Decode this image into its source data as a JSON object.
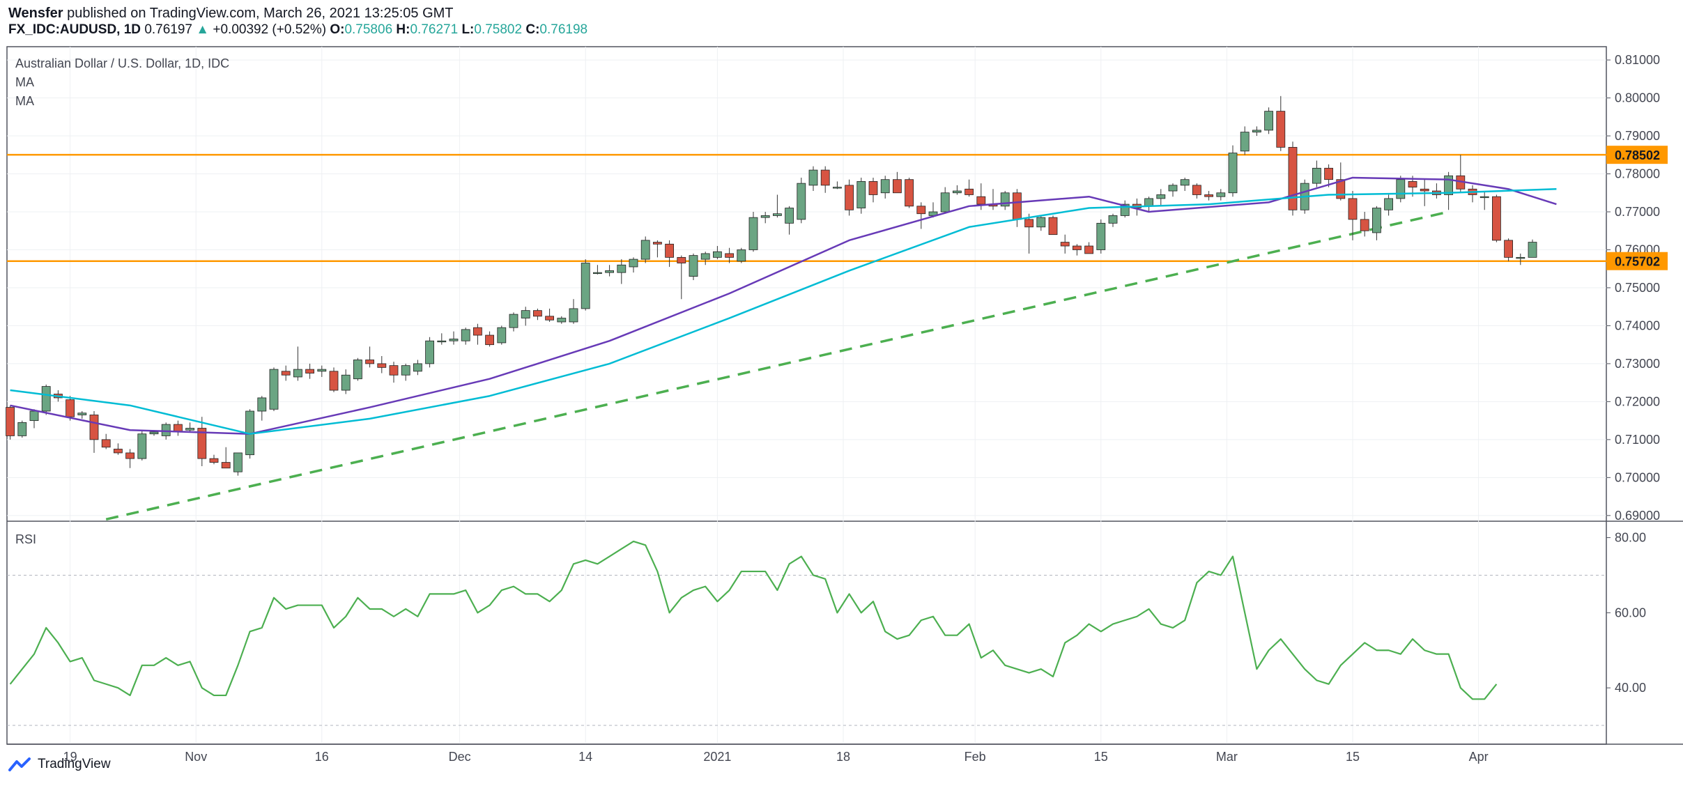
{
  "header": {
    "author": "Wensfer",
    "published_text": " published on TradingView.com, March 26, 2021 13:25:05 GMT",
    "symbol": "FX_IDC:AUDUSD, 1D",
    "last": "0.76197",
    "change_arrow": "▲",
    "change": "+0.00392 (+0.52%)",
    "o_label": "O:",
    "o": "0.75806",
    "h_label": "H:",
    "h": "0.76271",
    "l_label": "L:",
    "l": "0.75802",
    "c_label": "C:",
    "c": "0.76198"
  },
  "main_pane": {
    "title": "Australian Dollar / U.S. Dollar, 1D, IDC",
    "indicator_1": "MA",
    "indicator_2": "MA"
  },
  "rsi_pane": {
    "title": "RSI"
  },
  "footer": {
    "brand": "TradingView"
  },
  "colors": {
    "up": "#6BA583",
    "down": "#D75442",
    "ma_fast": "#673AB7",
    "ma_slow": "#00BCD4",
    "trend": "#4CAF50",
    "hline": "#FF9800",
    "rsi": "#4CAF50"
  },
  "chart_data": [
    {
      "type": "candlestick",
      "x_tick_labels": [
        "19",
        "Nov",
        "16",
        "Dec",
        "14",
        "2021",
        "18",
        "Feb",
        "15",
        "Mar",
        "15",
        "Apr"
      ],
      "y_tick_labels": [
        "0.81000",
        "0.80000",
        "0.79000",
        "0.78000",
        "0.77000",
        "0.76000",
        "0.75000",
        "0.74000",
        "0.73000",
        "0.72000",
        "0.71000",
        "0.70000",
        "0.69000"
      ],
      "ylim": [
        0.6885,
        0.8135
      ],
      "candles": [
        [
          0.7185,
          0.719,
          0.71,
          0.711
        ],
        [
          0.711,
          0.715,
          0.7105,
          0.7145
        ],
        [
          0.715,
          0.718,
          0.713,
          0.7175
        ],
        [
          0.7175,
          0.7245,
          0.7165,
          0.724
        ],
        [
          0.722,
          0.723,
          0.72,
          0.721
        ],
        [
          0.7205,
          0.7215,
          0.715,
          0.716
        ],
        [
          0.7165,
          0.7175,
          0.7155,
          0.717
        ],
        [
          0.7165,
          0.7175,
          0.7065,
          0.71
        ],
        [
          0.71,
          0.7115,
          0.7075,
          0.708
        ],
        [
          0.7075,
          0.709,
          0.706,
          0.7065
        ],
        [
          0.7065,
          0.7075,
          0.7025,
          0.705
        ],
        [
          0.705,
          0.7125,
          0.7045,
          0.7115
        ],
        [
          0.7115,
          0.7125,
          0.711,
          0.712
        ],
        [
          0.711,
          0.7145,
          0.71,
          0.714
        ],
        [
          0.714,
          0.715,
          0.711,
          0.712
        ],
        [
          0.7125,
          0.7145,
          0.712,
          0.713
        ],
        [
          0.713,
          0.716,
          0.703,
          0.705
        ],
        [
          0.705,
          0.706,
          0.7035,
          0.704
        ],
        [
          0.704,
          0.708,
          0.703,
          0.7025
        ],
        [
          0.7015,
          0.7065,
          0.7005,
          0.7065
        ],
        [
          0.706,
          0.718,
          0.705,
          0.7175
        ],
        [
          0.7175,
          0.7215,
          0.715,
          0.721
        ],
        [
          0.718,
          0.729,
          0.7175,
          0.7285
        ],
        [
          0.728,
          0.7295,
          0.7255,
          0.727
        ],
        [
          0.7265,
          0.7345,
          0.7255,
          0.7285
        ],
        [
          0.7285,
          0.73,
          0.726,
          0.7275
        ],
        [
          0.728,
          0.7295,
          0.7265,
          0.7285
        ],
        [
          0.728,
          0.729,
          0.7225,
          0.723
        ],
        [
          0.723,
          0.7285,
          0.722,
          0.727
        ],
        [
          0.726,
          0.7315,
          0.7255,
          0.731
        ],
        [
          0.731,
          0.7345,
          0.729,
          0.73
        ],
        [
          0.73,
          0.732,
          0.7275,
          0.729
        ],
        [
          0.7295,
          0.7305,
          0.725,
          0.727
        ],
        [
          0.727,
          0.73,
          0.7255,
          0.7295
        ],
        [
          0.728,
          0.731,
          0.727,
          0.73
        ],
        [
          0.73,
          0.737,
          0.729,
          0.736
        ],
        [
          0.736,
          0.738,
          0.735,
          0.736
        ],
        [
          0.736,
          0.7385,
          0.735,
          0.7365
        ],
        [
          0.736,
          0.7395,
          0.735,
          0.739
        ],
        [
          0.7395,
          0.7405,
          0.735,
          0.7375
        ],
        [
          0.7375,
          0.7385,
          0.7345,
          0.735
        ],
        [
          0.7355,
          0.74,
          0.735,
          0.7395
        ],
        [
          0.7395,
          0.7435,
          0.7385,
          0.743
        ],
        [
          0.742,
          0.745,
          0.74,
          0.744
        ],
        [
          0.744,
          0.7445,
          0.7415,
          0.7425
        ],
        [
          0.7425,
          0.7445,
          0.741,
          0.7415
        ],
        [
          0.741,
          0.7425,
          0.7405,
          0.742
        ],
        [
          0.741,
          0.747,
          0.7405,
          0.7445
        ],
        [
          0.7445,
          0.7575,
          0.744,
          0.7565
        ],
        [
          0.754,
          0.756,
          0.7535,
          0.754
        ],
        [
          0.754,
          0.756,
          0.753,
          0.7545
        ],
        [
          0.754,
          0.7575,
          0.751,
          0.756
        ],
        [
          0.7555,
          0.758,
          0.754,
          0.7575
        ],
        [
          0.7575,
          0.7635,
          0.7565,
          0.7625
        ],
        [
          0.762,
          0.7625,
          0.758,
          0.7615
        ],
        [
          0.7615,
          0.7625,
          0.7555,
          0.758
        ],
        [
          0.758,
          0.7585,
          0.747,
          0.7565
        ],
        [
          0.753,
          0.759,
          0.752,
          0.7585
        ],
        [
          0.7575,
          0.7595,
          0.756,
          0.759
        ],
        [
          0.758,
          0.761,
          0.7575,
          0.7595
        ],
        [
          0.759,
          0.7605,
          0.7565,
          0.758
        ],
        [
          0.757,
          0.7605,
          0.7565,
          0.76
        ],
        [
          0.76,
          0.77,
          0.7595,
          0.7685
        ],
        [
          0.7685,
          0.77,
          0.767,
          0.769
        ],
        [
          0.769,
          0.7745,
          0.7685,
          0.7695
        ],
        [
          0.767,
          0.7715,
          0.764,
          0.771
        ],
        [
          0.768,
          0.779,
          0.767,
          0.7775
        ],
        [
          0.777,
          0.782,
          0.7755,
          0.781
        ],
        [
          0.781,
          0.782,
          0.775,
          0.777
        ],
        [
          0.7765,
          0.778,
          0.776,
          0.7765
        ],
        [
          0.777,
          0.7785,
          0.769,
          0.7705
        ],
        [
          0.771,
          0.779,
          0.7695,
          0.778
        ],
        [
          0.778,
          0.779,
          0.7725,
          0.7745
        ],
        [
          0.775,
          0.7795,
          0.7735,
          0.7785
        ],
        [
          0.7785,
          0.7805,
          0.7755,
          0.775
        ],
        [
          0.7785,
          0.779,
          0.771,
          0.7715
        ],
        [
          0.7715,
          0.7725,
          0.7655,
          0.7695
        ],
        [
          0.769,
          0.7725,
          0.7685,
          0.77
        ],
        [
          0.77,
          0.7765,
          0.7695,
          0.775
        ],
        [
          0.775,
          0.777,
          0.7745,
          0.7755
        ],
        [
          0.776,
          0.7785,
          0.774,
          0.7745
        ],
        [
          0.774,
          0.7775,
          0.7705,
          0.772
        ],
        [
          0.772,
          0.776,
          0.7705,
          0.7715
        ],
        [
          0.7715,
          0.7755,
          0.7705,
          0.775
        ],
        [
          0.775,
          0.776,
          0.766,
          0.768
        ],
        [
          0.768,
          0.7695,
          0.759,
          0.766
        ],
        [
          0.766,
          0.769,
          0.765,
          0.7685
        ],
        [
          0.7685,
          0.769,
          0.764,
          0.764
        ],
        [
          0.762,
          0.764,
          0.759,
          0.761
        ],
        [
          0.761,
          0.7615,
          0.7585,
          0.76
        ],
        [
          0.761,
          0.762,
          0.759,
          0.759
        ],
        [
          0.76,
          0.768,
          0.759,
          0.767
        ],
        [
          0.767,
          0.7695,
          0.766,
          0.769
        ],
        [
          0.769,
          0.773,
          0.7685,
          0.772
        ],
        [
          0.772,
          0.7735,
          0.769,
          0.771
        ],
        [
          0.7715,
          0.774,
          0.77,
          0.7735
        ],
        [
          0.7735,
          0.776,
          0.7715,
          0.7745
        ],
        [
          0.7755,
          0.7775,
          0.774,
          0.777
        ],
        [
          0.777,
          0.779,
          0.7755,
          0.7785
        ],
        [
          0.777,
          0.7775,
          0.7735,
          0.7745
        ],
        [
          0.7745,
          0.7755,
          0.773,
          0.774
        ],
        [
          0.774,
          0.776,
          0.773,
          0.775
        ],
        [
          0.775,
          0.7875,
          0.774,
          0.7855
        ],
        [
          0.786,
          0.7925,
          0.785,
          0.791
        ],
        [
          0.791,
          0.7925,
          0.79,
          0.7915
        ],
        [
          0.7915,
          0.7975,
          0.7905,
          0.7965
        ],
        [
          0.7965,
          0.8005,
          0.786,
          0.787
        ],
        [
          0.787,
          0.7885,
          0.769,
          0.7705
        ],
        [
          0.7705,
          0.7785,
          0.7695,
          0.7775
        ],
        [
          0.7775,
          0.7835,
          0.7765,
          0.7815
        ],
        [
          0.7815,
          0.7825,
          0.7765,
          0.7785
        ],
        [
          0.7785,
          0.783,
          0.773,
          0.7735
        ],
        [
          0.7735,
          0.7755,
          0.7625,
          0.768
        ],
        [
          0.768,
          0.77,
          0.7635,
          0.765
        ],
        [
          0.7645,
          0.7715,
          0.7625,
          0.771
        ],
        [
          0.7705,
          0.7745,
          0.769,
          0.7735
        ],
        [
          0.7735,
          0.7795,
          0.7725,
          0.7785
        ],
        [
          0.778,
          0.7795,
          0.774,
          0.7765
        ],
        [
          0.776,
          0.7785,
          0.7715,
          0.7755
        ],
        [
          0.7755,
          0.7775,
          0.7735,
          0.7745
        ],
        [
          0.7745,
          0.7805,
          0.7705,
          0.7795
        ],
        [
          0.7795,
          0.785,
          0.775,
          0.776
        ],
        [
          0.776,
          0.777,
          0.7725,
          0.7745
        ],
        [
          0.774,
          0.7755,
          0.7705,
          0.774
        ],
        [
          0.774,
          0.7745,
          0.762,
          0.7625
        ],
        [
          0.7625,
          0.763,
          0.757,
          0.758
        ],
        [
          0.758,
          0.759,
          0.756,
          0.758
        ],
        [
          0.758,
          0.7627,
          0.758,
          0.762
        ]
      ],
      "moving_averages": [
        {
          "name": "MA",
          "color": "#673AB7",
          "values": [
            [
              0,
              0.719
            ],
            [
              10,
              0.7125
            ],
            [
              20,
              0.7115
            ],
            [
              30,
              0.7185
            ],
            [
              40,
              0.726
            ],
            [
              50,
              0.736
            ],
            [
              60,
              0.7485
            ],
            [
              70,
              0.7625
            ],
            [
              80,
              0.7715
            ],
            [
              90,
              0.774
            ],
            [
              95,
              0.77
            ],
            [
              105,
              0.7725
            ],
            [
              112,
              0.779
            ],
            [
              120,
              0.7785
            ],
            [
              125,
              0.776
            ],
            [
              129,
              0.772
            ]
          ]
        },
        {
          "name": "MA",
          "color": "#00BCD4",
          "values": [
            [
              0,
              0.723
            ],
            [
              10,
              0.719
            ],
            [
              20,
              0.7115
            ],
            [
              30,
              0.7155
            ],
            [
              40,
              0.7215
            ],
            [
              50,
              0.73
            ],
            [
              60,
              0.742
            ],
            [
              70,
              0.7545
            ],
            [
              80,
              0.766
            ],
            [
              90,
              0.771
            ],
            [
              100,
              0.772
            ],
            [
              110,
              0.7745
            ],
            [
              120,
              0.775
            ],
            [
              129,
              0.776
            ]
          ]
        }
      ],
      "trendline": {
        "start": [
          8,
          0.689
        ],
        "end": [
          120,
          0.77
        ]
      },
      "horizontal_lines": [
        0.78502,
        0.75702
      ],
      "price_labels": [
        "0.78502",
        "0.75702"
      ]
    },
    {
      "type": "line",
      "title": "RSI",
      "y_tick_labels": [
        "80.00",
        "60.00",
        "40.00"
      ],
      "ylim": [
        25,
        84
      ],
      "bands": [
        70,
        30
      ],
      "values": [
        41,
        45,
        49,
        56,
        52,
        47,
        48,
        42,
        41,
        40,
        38,
        46,
        46,
        48,
        46,
        47,
        40,
        38,
        38,
        46,
        55,
        56,
        64,
        61,
        62,
        62,
        62,
        56,
        59,
        64,
        61,
        61,
        59,
        61,
        59,
        65,
        65,
        65,
        66,
        60,
        62,
        66,
        67,
        65,
        65,
        63,
        66,
        73,
        74,
        73,
        75,
        77,
        79,
        78,
        71,
        60,
        64,
        66,
        67,
        63,
        66,
        71,
        71,
        71,
        66,
        73,
        75,
        70,
        69,
        60,
        65,
        60,
        63,
        55,
        53,
        54,
        58,
        59,
        54,
        54,
        57,
        48,
        50,
        46,
        45,
        44,
        45,
        43,
        52,
        54,
        57,
        55,
        57,
        58,
        59,
        61,
        57,
        56,
        58,
        68,
        71,
        70,
        75,
        60,
        45,
        50,
        53,
        49,
        45,
        42,
        41,
        46,
        49,
        52,
        50,
        50,
        49,
        53,
        50,
        49,
        49,
        40,
        37,
        37,
        41
      ]
    }
  ]
}
